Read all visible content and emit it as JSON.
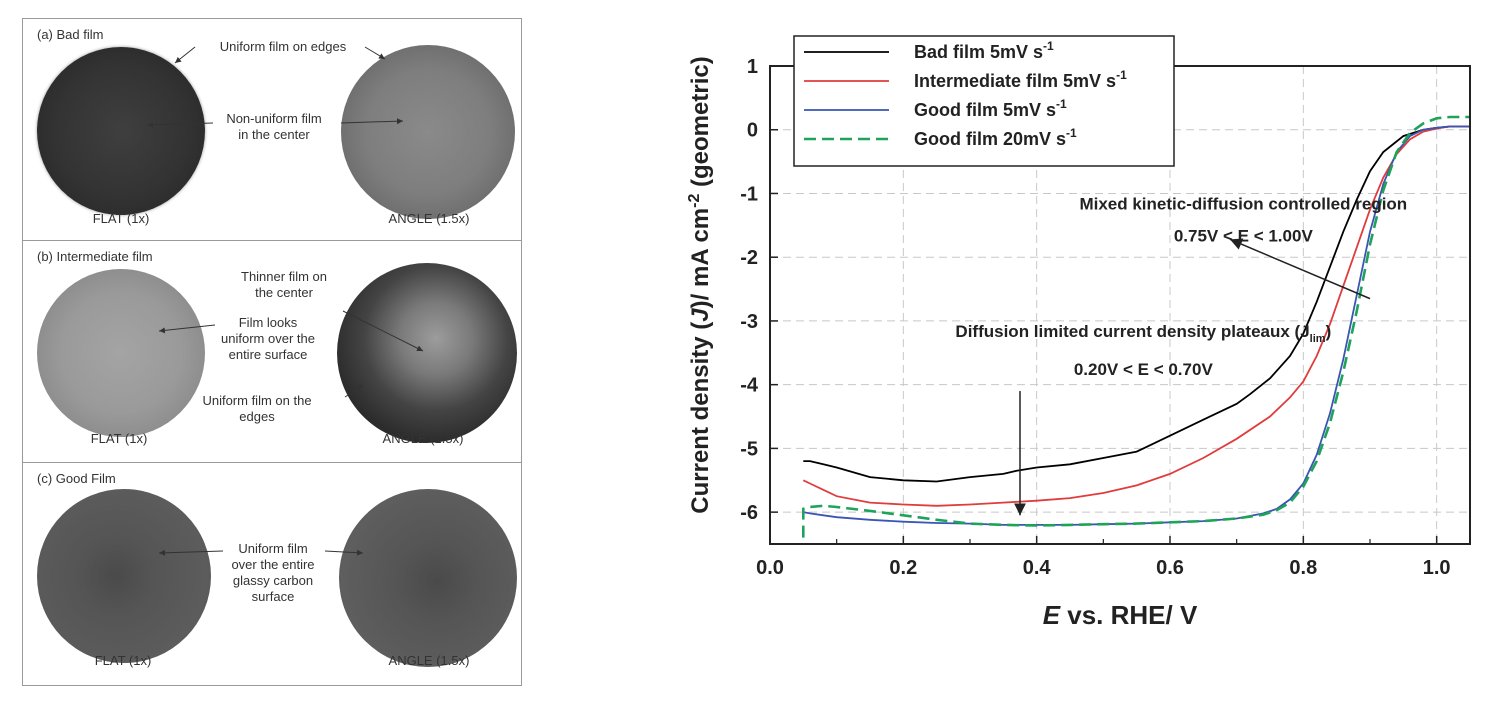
{
  "photos": {
    "panels": [
      {
        "title": "(a) Bad film",
        "left_label": "FLAT (1x)",
        "right_label": "ANGLE (1.5x)",
        "notes": [
          "Uniform film on edges",
          "Non-uniform film",
          "in the center"
        ]
      },
      {
        "title": "(b) Intermediate film",
        "left_label": "FLAT (1x)",
        "right_label": "ANGLE (1.5x)",
        "notes": [
          "Thinner film on",
          "the center",
          "Film looks",
          "uniform over the",
          "entire surface",
          "Uniform film on the",
          "edges"
        ]
      },
      {
        "title": "(c) Good Film",
        "left_label": "FLAT (1x)",
        "right_label": "ANGLE (1.5x)",
        "notes": [
          "Uniform film",
          "over the entire",
          "glassy carbon",
          "surface"
        ]
      }
    ]
  },
  "chart_data": {
    "type": "line",
    "xlabel_italic": "E",
    "xlabel_rest": " vs. RHE/ V",
    "ylabel_parts": [
      "Current density (",
      "J",
      ")/ mA cm",
      "-2",
      " (geometric)"
    ],
    "xlim": [
      0.0,
      1.05
    ],
    "ylim": [
      -6.5,
      1.0
    ],
    "xticks": [
      0.0,
      0.2,
      0.4,
      0.6,
      0.8,
      1.0
    ],
    "xtick_labels": [
      "0.0",
      "0.2",
      "0.4",
      "0.6",
      "0.8",
      "1.0"
    ],
    "yticks": [
      1,
      0,
      -1,
      -2,
      -3,
      -4,
      -5,
      -6
    ],
    "ytick_labels": [
      "1",
      "0",
      "-1",
      "-2",
      "-3",
      "-4",
      "-5",
      "-6"
    ],
    "grid": true,
    "legend_position": "top-left",
    "series": [
      {
        "name": "Bad film 5mV s",
        "name_sup": "-1",
        "color": "#000000",
        "dash": "solid",
        "x": [
          0.05,
          0.06,
          0.08,
          0.1,
          0.15,
          0.2,
          0.25,
          0.3,
          0.35,
          0.37,
          0.4,
          0.45,
          0.5,
          0.55,
          0.6,
          0.65,
          0.7,
          0.72,
          0.75,
          0.78,
          0.8,
          0.82,
          0.84,
          0.86,
          0.88,
          0.9,
          0.92,
          0.95,
          0.98,
          1.0,
          1.02,
          1.05
        ],
        "y": [
          -5.2,
          -5.2,
          -5.25,
          -5.3,
          -5.45,
          -5.5,
          -5.52,
          -5.45,
          -5.4,
          -5.35,
          -5.3,
          -5.25,
          -5.15,
          -5.05,
          -4.8,
          -4.55,
          -4.3,
          -4.15,
          -3.9,
          -3.55,
          -3.2,
          -2.7,
          -2.15,
          -1.6,
          -1.1,
          -0.65,
          -0.35,
          -0.1,
          0.0,
          0.03,
          0.05,
          0.05
        ]
      },
      {
        "name": "Intermediate film 5mV s",
        "name_sup": "-1",
        "color": "#e03c3c",
        "dash": "solid",
        "x": [
          0.05,
          0.06,
          0.08,
          0.1,
          0.15,
          0.2,
          0.25,
          0.3,
          0.35,
          0.4,
          0.45,
          0.5,
          0.55,
          0.6,
          0.65,
          0.7,
          0.75,
          0.78,
          0.8,
          0.82,
          0.84,
          0.86,
          0.88,
          0.9,
          0.92,
          0.94,
          0.96,
          0.98,
          1.0,
          1.02,
          1.05
        ],
        "y": [
          -5.5,
          -5.55,
          -5.65,
          -5.75,
          -5.85,
          -5.88,
          -5.9,
          -5.88,
          -5.85,
          -5.82,
          -5.78,
          -5.7,
          -5.58,
          -5.4,
          -5.15,
          -4.85,
          -4.5,
          -4.2,
          -3.95,
          -3.55,
          -3.05,
          -2.45,
          -1.85,
          -1.25,
          -0.75,
          -0.38,
          -0.15,
          -0.03,
          0.02,
          0.05,
          0.05
        ]
      },
      {
        "name": "Good film 5mV s",
        "name_sup": "-1",
        "color": "#3a55b4",
        "dash": "solid",
        "x": [
          0.05,
          0.06,
          0.08,
          0.1,
          0.15,
          0.2,
          0.25,
          0.3,
          0.35,
          0.4,
          0.45,
          0.5,
          0.55,
          0.6,
          0.65,
          0.7,
          0.74,
          0.76,
          0.78,
          0.8,
          0.82,
          0.84,
          0.86,
          0.88,
          0.9,
          0.92,
          0.94,
          0.96,
          0.98,
          1.0,
          1.02,
          1.05
        ],
        "y": [
          -6.0,
          -6.02,
          -6.05,
          -6.08,
          -6.12,
          -6.15,
          -6.17,
          -6.18,
          -6.2,
          -6.2,
          -6.2,
          -6.19,
          -6.18,
          -6.16,
          -6.14,
          -6.1,
          -6.02,
          -5.95,
          -5.8,
          -5.55,
          -5.1,
          -4.45,
          -3.6,
          -2.6,
          -1.6,
          -0.85,
          -0.35,
          -0.1,
          0.0,
          0.03,
          0.05,
          0.05
        ]
      },
      {
        "name": "Good film 20mV s",
        "name_sup": "-1",
        "color": "#1fa35a",
        "dash": "dashed",
        "x": [
          0.05,
          0.05,
          0.06,
          0.08,
          0.1,
          0.15,
          0.2,
          0.25,
          0.3,
          0.35,
          0.4,
          0.45,
          0.5,
          0.55,
          0.6,
          0.65,
          0.7,
          0.74,
          0.76,
          0.78,
          0.8,
          0.82,
          0.84,
          0.86,
          0.88,
          0.9,
          0.92,
          0.94,
          0.96,
          0.98,
          1.0,
          1.02,
          1.05
        ],
        "y": [
          -6.4,
          -5.95,
          -5.92,
          -5.9,
          -5.92,
          -5.98,
          -6.05,
          -6.12,
          -6.18,
          -6.2,
          -6.21,
          -6.2,
          -6.19,
          -6.18,
          -6.16,
          -6.14,
          -6.1,
          -6.04,
          -5.97,
          -5.85,
          -5.6,
          -5.2,
          -4.6,
          -3.8,
          -2.85,
          -1.8,
          -0.95,
          -0.35,
          -0.05,
          0.1,
          0.18,
          0.2,
          0.2
        ]
      }
    ],
    "annotations": [
      {
        "lines": [
          "Mixed kinetic-diffusion controlled region",
          "0.75V < E < 1.00V"
        ]
      },
      {
        "lines": [
          "Diffusion limited current density plateaux (J",
          "0.20V < E < 0.70V"
        ],
        "sub": "lim",
        "suffix": ")"
      }
    ]
  }
}
